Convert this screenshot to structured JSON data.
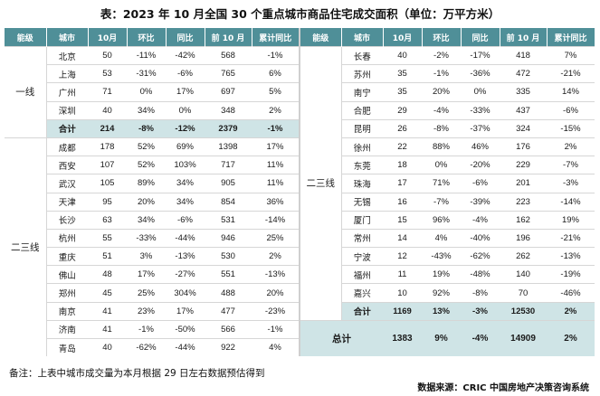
{
  "title": "表：2023 年 10 月全国 30 个重点城市商品住宅成交面积（单位：万平方米）",
  "columns": [
    "能级",
    "城市",
    "10月",
    "环比",
    "同比",
    "前 10 月",
    "累计同比"
  ],
  "left": {
    "tier1_label": "一线",
    "tier1_rows": [
      [
        "北京",
        "50",
        "-11%",
        "-42%",
        "568",
        "-1%"
      ],
      [
        "上海",
        "53",
        "-31%",
        "-6%",
        "765",
        "6%"
      ],
      [
        "广州",
        "71",
        "0%",
        "17%",
        "697",
        "5%"
      ],
      [
        "深圳",
        "40",
        "34%",
        "0%",
        "348",
        "2%"
      ]
    ],
    "tier1_subtotal": [
      "合计",
      "214",
      "-8%",
      "-12%",
      "2379",
      "-1%"
    ],
    "tier23_label": "二三线",
    "tier23_rows": [
      [
        "成都",
        "178",
        "52%",
        "69%",
        "1398",
        "17%"
      ],
      [
        "西安",
        "107",
        "52%",
        "103%",
        "717",
        "11%"
      ],
      [
        "武汉",
        "105",
        "89%",
        "34%",
        "905",
        "11%"
      ],
      [
        "天津",
        "95",
        "20%",
        "34%",
        "854",
        "36%"
      ],
      [
        "长沙",
        "63",
        "34%",
        "-6%",
        "531",
        "-14%"
      ],
      [
        "杭州",
        "55",
        "-33%",
        "-44%",
        "946",
        "25%"
      ],
      [
        "重庆",
        "51",
        "3%",
        "-13%",
        "530",
        "2%"
      ],
      [
        "佛山",
        "48",
        "17%",
        "-27%",
        "551",
        "-13%"
      ],
      [
        "郑州",
        "45",
        "25%",
        "304%",
        "488",
        "20%"
      ],
      [
        "南京",
        "41",
        "23%",
        "17%",
        "477",
        "-23%"
      ],
      [
        "济南",
        "41",
        "-1%",
        "-50%",
        "566",
        "-1%"
      ],
      [
        "青岛",
        "40",
        "-62%",
        "-44%",
        "922",
        "4%"
      ]
    ]
  },
  "right": {
    "tier_label": "二三线",
    "rows": [
      [
        "长春",
        "40",
        "-2%",
        "-17%",
        "418",
        "7%"
      ],
      [
        "苏州",
        "35",
        "-1%",
        "-36%",
        "472",
        "-21%"
      ],
      [
        "南宁",
        "35",
        "20%",
        "0%",
        "335",
        "14%"
      ],
      [
        "合肥",
        "29",
        "-4%",
        "-33%",
        "437",
        "-6%"
      ],
      [
        "昆明",
        "26",
        "-8%",
        "-37%",
        "324",
        "-15%"
      ],
      [
        "徐州",
        "22",
        "88%",
        "46%",
        "176",
        "2%"
      ],
      [
        "东莞",
        "18",
        "0%",
        "-20%",
        "229",
        "-7%"
      ],
      [
        "珠海",
        "17",
        "71%",
        "-6%",
        "201",
        "-3%"
      ],
      [
        "无锡",
        "16",
        "-7%",
        "-39%",
        "223",
        "-14%"
      ],
      [
        "厦门",
        "15",
        "96%",
        "-4%",
        "162",
        "19%"
      ],
      [
        "常州",
        "14",
        "4%",
        "-40%",
        "196",
        "-21%"
      ],
      [
        "宁波",
        "12",
        "-43%",
        "-62%",
        "262",
        "-13%"
      ],
      [
        "福州",
        "11",
        "19%",
        "-48%",
        "140",
        "-19%"
      ],
      [
        "嘉兴",
        "10",
        "92%",
        "-8%",
        "70",
        "-46%"
      ]
    ],
    "subtotal": [
      "合计",
      "1169",
      "13%",
      "-3%",
      "12530",
      "2%"
    ],
    "grand_total": [
      "总计",
      "1383",
      "9%",
      "-4%",
      "14909",
      "2%"
    ]
  },
  "footnote": "备注：上表中城市成交量为本月根据 29 日左右数据预估得到",
  "source": "数据来源：CRIC 中国房地产决策咨询系统",
  "colors": {
    "header": "#4f8f98",
    "highlight": "#cfe4e6"
  }
}
